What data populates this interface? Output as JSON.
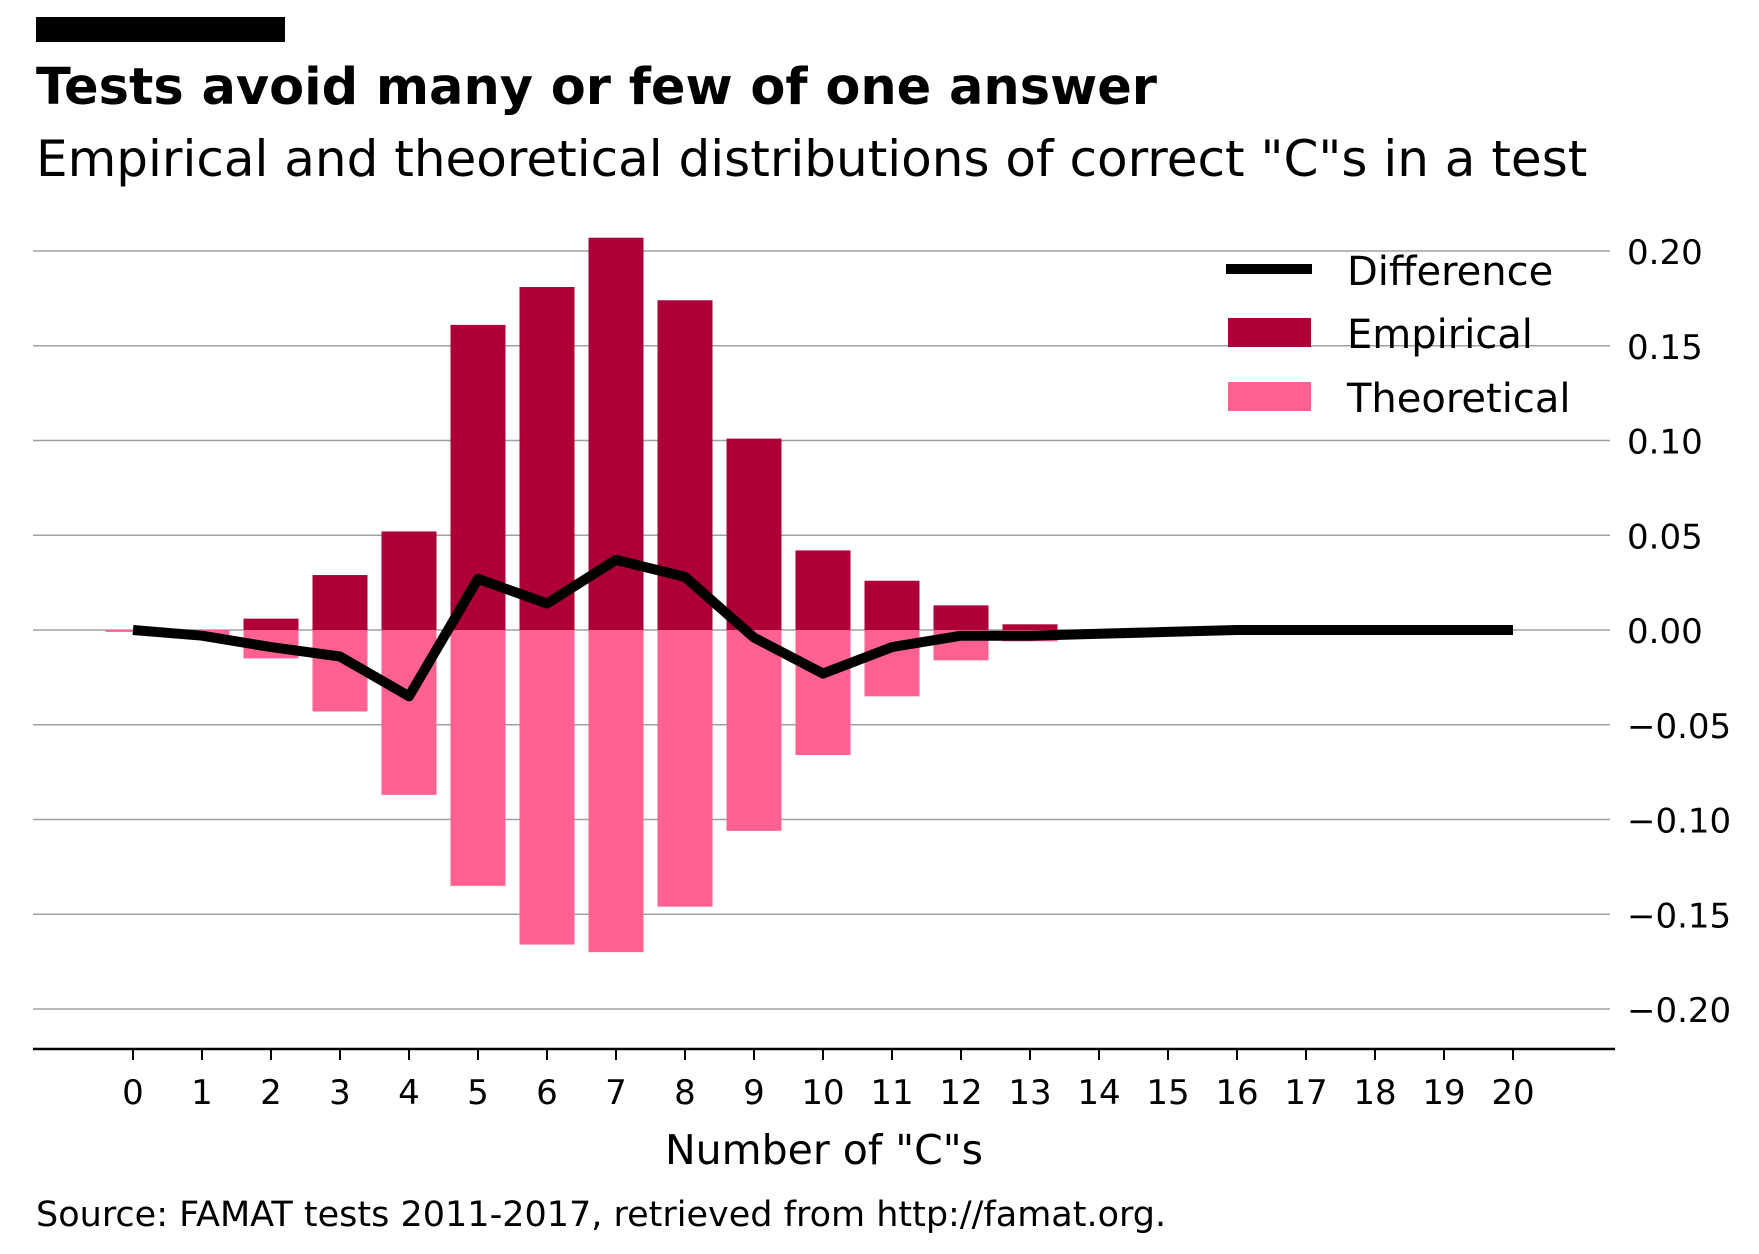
{
  "colors": {
    "empirical": "#ad0036",
    "theoretical": "#ff6290",
    "difference": "#000000",
    "grid": "#a0a0a0"
  },
  "chart_data": {
    "type": "bar",
    "title": "Tests avoid many or few of one answer",
    "subtitle": "Empirical and theoretical distributions of correct \"C\"s in a test",
    "xlabel": "Number of \"C\"s",
    "ylabel": "",
    "categories": [
      "0",
      "1",
      "2",
      "3",
      "4",
      "5",
      "6",
      "7",
      "8",
      "9",
      "10",
      "11",
      "12",
      "13",
      "14",
      "15",
      "16",
      "17",
      "18",
      "19",
      "20"
    ],
    "ylim": [
      -0.22,
      0.21
    ],
    "yticks": [
      0.2,
      0.15,
      0.1,
      0.05,
      0.0,
      -0.05,
      -0.1,
      -0.15,
      -0.2
    ],
    "ytick_labels": [
      "0.20",
      "0.15",
      "0.10",
      "0.05",
      "0.00",
      "−0.05",
      "−0.10",
      "−0.15",
      "−0.20"
    ],
    "y_axis_side": "right",
    "grid": "horizontal",
    "legend_position": "top-right",
    "series": [
      {
        "name": "Empirical",
        "type": "bar",
        "values": [
          0.0,
          0.0,
          0.006,
          0.029,
          0.052,
          0.161,
          0.181,
          0.207,
          0.174,
          0.101,
          0.042,
          0.026,
          0.013,
          0.003,
          0,
          0,
          0,
          0,
          0,
          0,
          0
        ]
      },
      {
        "name": "Theoretical",
        "type": "bar",
        "plotted_negative": true,
        "values": [
          0.001,
          0.004,
          0.015,
          0.043,
          0.087,
          0.135,
          0.166,
          0.17,
          0.146,
          0.106,
          0.066,
          0.035,
          0.016,
          0.006,
          0.002,
          0.001,
          0,
          0,
          0,
          0,
          0
        ]
      },
      {
        "name": "Difference",
        "type": "line",
        "values": [
          0.0,
          -0.003,
          -0.009,
          -0.014,
          -0.035,
          0.027,
          0.014,
          0.037,
          0.028,
          -0.004,
          -0.023,
          -0.009,
          -0.003,
          -0.003,
          -0.002,
          -0.001,
          0,
          0,
          0,
          0,
          0
        ]
      }
    ],
    "source": "Source: FAMAT tests 2011-2017, retrieved from http://famat.org."
  }
}
